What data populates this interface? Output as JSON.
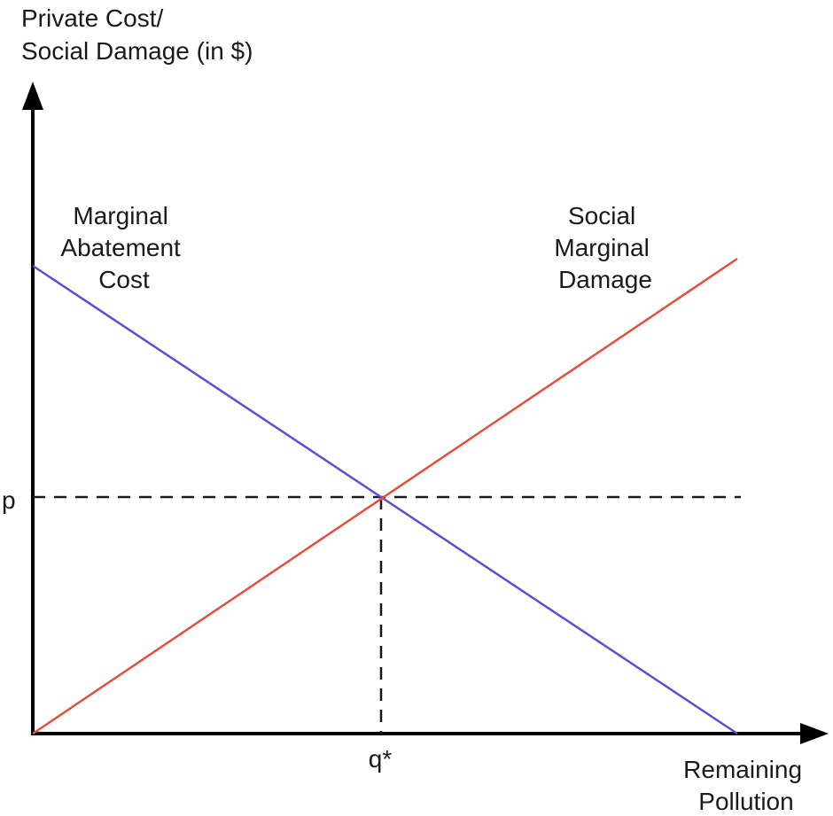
{
  "y_axis": {
    "label_lines": [
      "Private Cost/",
      "Social Damage (in $)"
    ]
  },
  "x_axis": {
    "label_lines": [
      "Remaining",
      "Pollution"
    ]
  },
  "curves": {
    "abatement": {
      "label_lines": [
        "Marginal",
        "Abatement",
        "Cost"
      ],
      "color": "#5b4fd0"
    },
    "damage": {
      "label_lines": [
        "Social",
        "Marginal",
        "Damage"
      ],
      "color": "#e0503c"
    }
  },
  "equilibrium": {
    "price_label": "p",
    "quantity_label": "q*"
  },
  "colors": {
    "axis": "#000000",
    "guide": "#1a1a1a",
    "text": "#1a1a1a"
  }
}
